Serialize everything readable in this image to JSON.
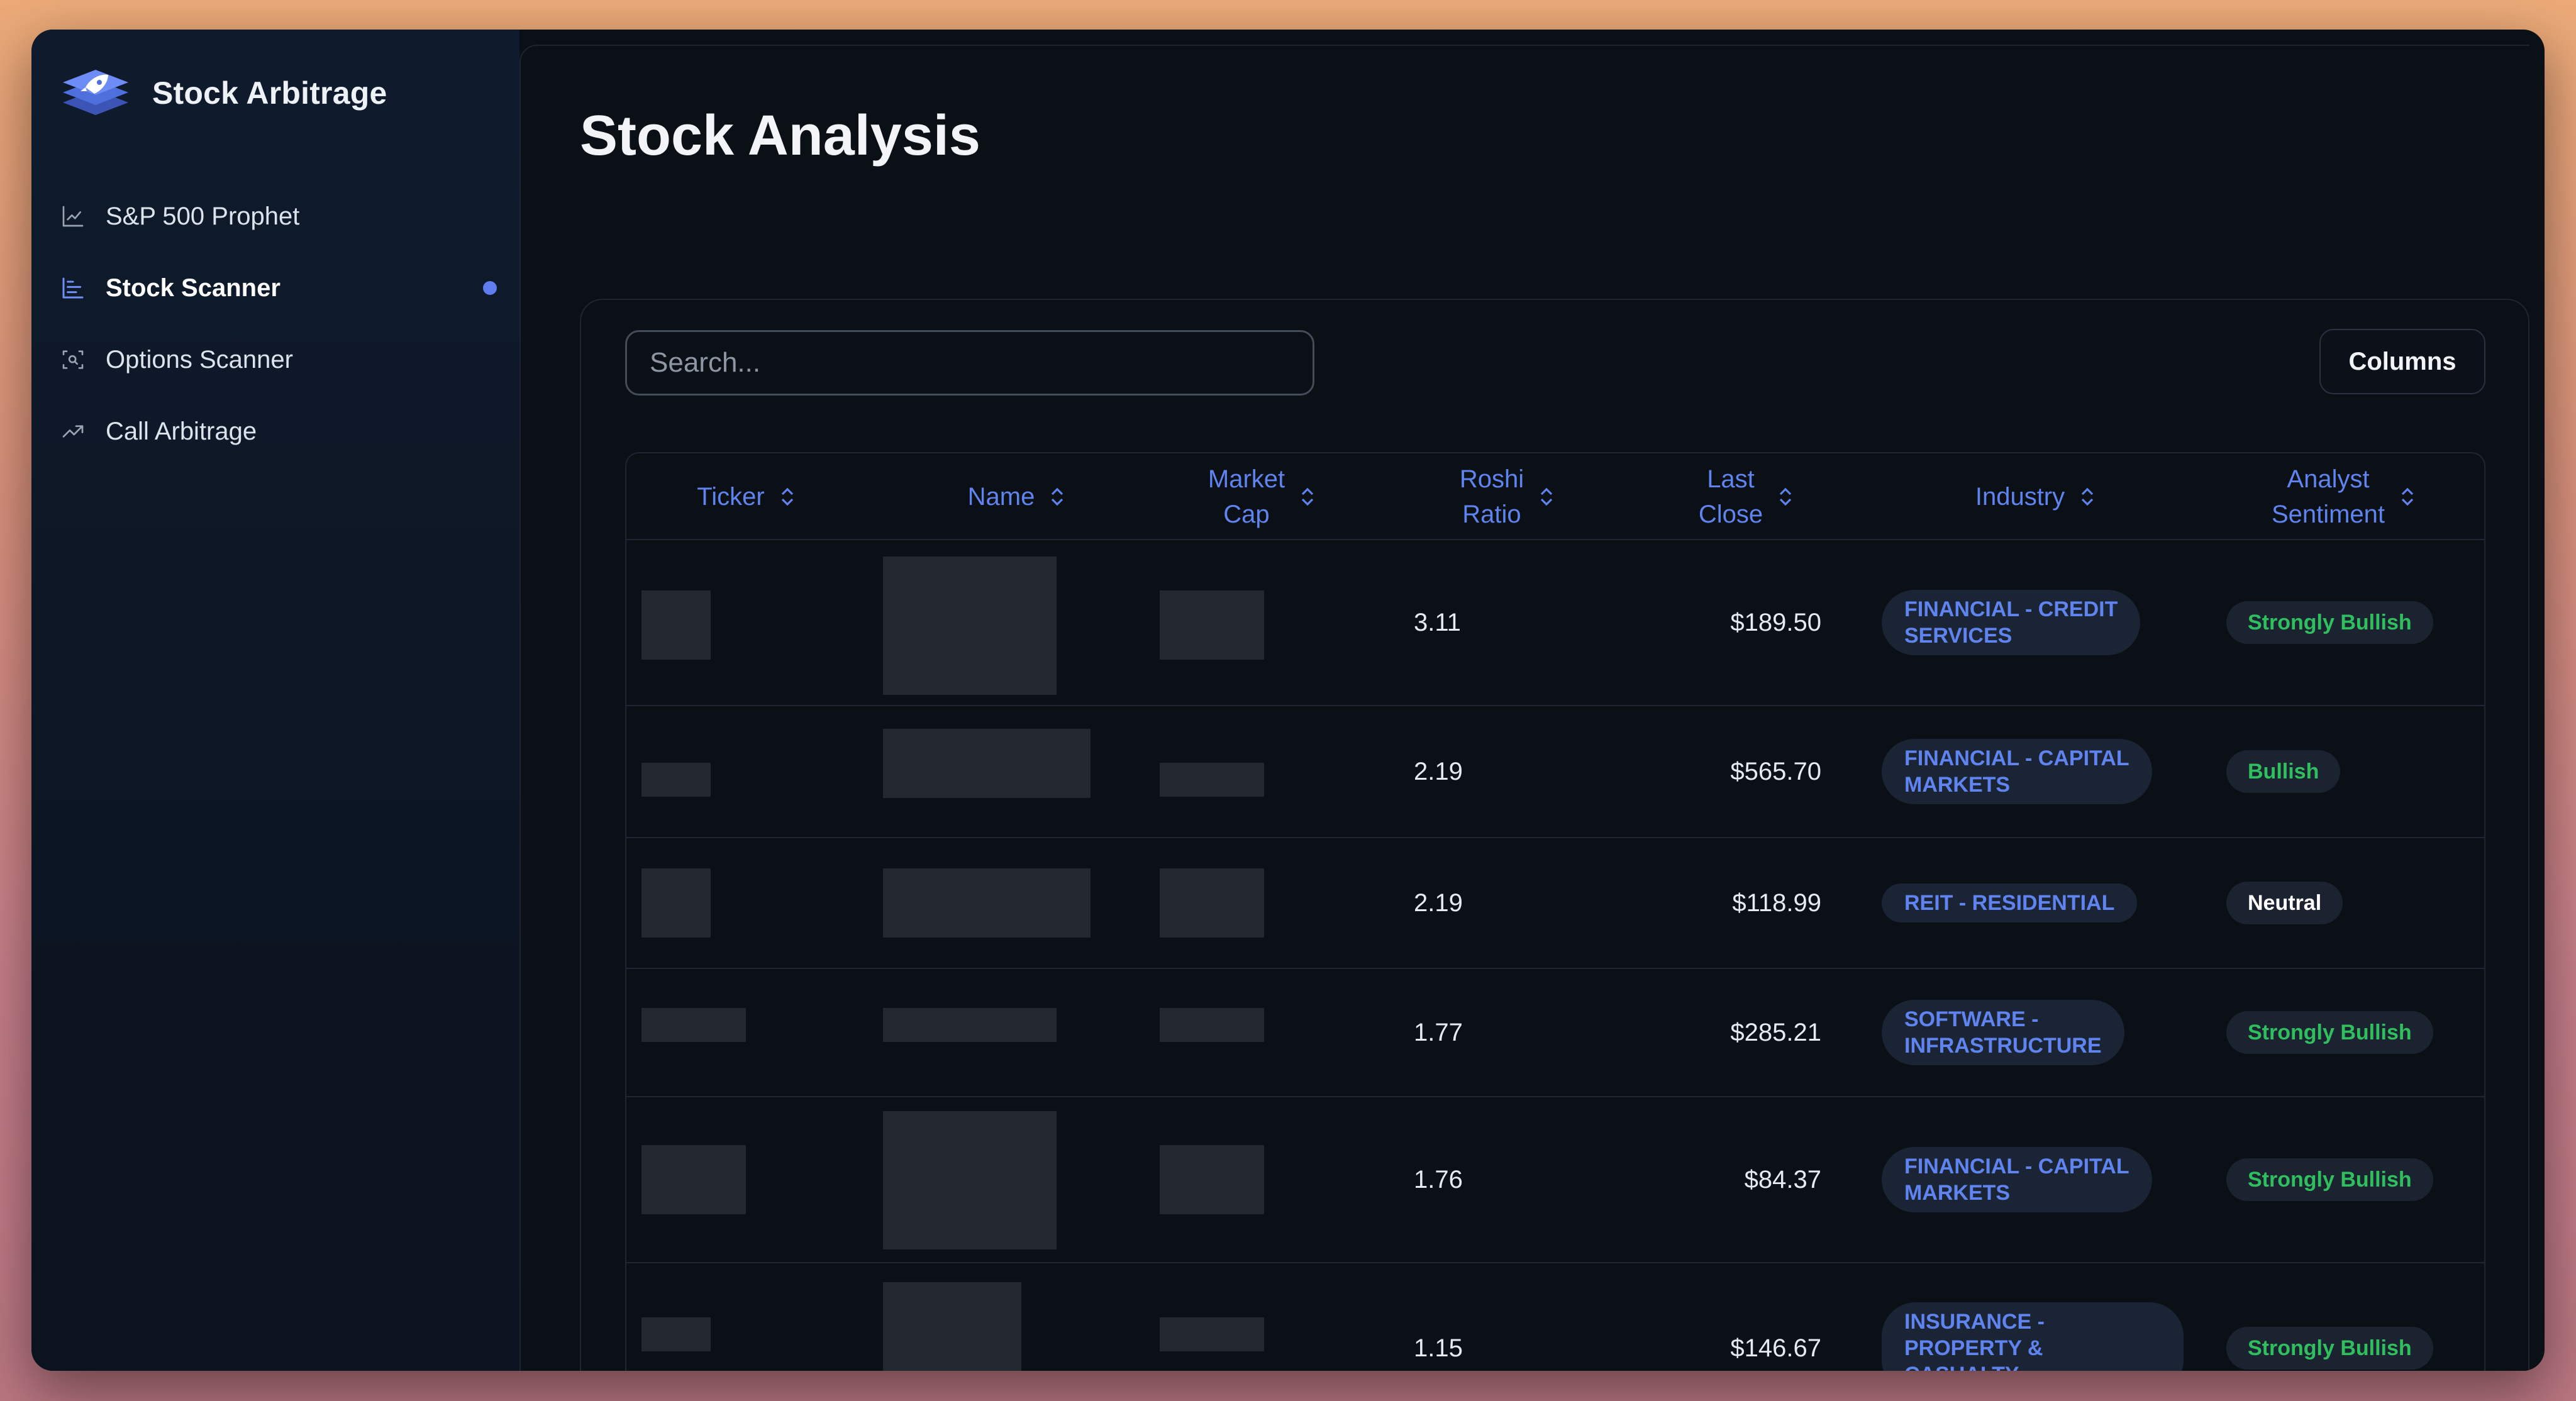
{
  "app": {
    "name": "Stock Arbitrage"
  },
  "sidebar": {
    "items": [
      {
        "label": "S&P 500 Prophet",
        "icon": "line-chart-icon",
        "active": false
      },
      {
        "label": "Stock Scanner",
        "icon": "bar-chart-icon",
        "active": true
      },
      {
        "label": "Options Scanner",
        "icon": "scan-icon",
        "active": false
      },
      {
        "label": "Call Arbitrage",
        "icon": "trending-up-icon",
        "active": false
      }
    ]
  },
  "main": {
    "title": "Stock Analysis",
    "search": {
      "placeholder": "Search..."
    },
    "columns_button": "Columns",
    "table": {
      "headers": {
        "ticker": "Ticker",
        "name": "Name",
        "market_cap_1": "Market",
        "market_cap_2": "Cap",
        "roshi_1": "Roshi",
        "roshi_2": "Ratio",
        "last_close_1": "Last",
        "last_close_2": "Close",
        "industry": "Industry",
        "sentiment_1": "Analyst",
        "sentiment_2": "Sentiment"
      },
      "rows": [
        {
          "ratio": "3.11",
          "close": "$189.50",
          "industry_1": "FINANCIAL - CREDIT",
          "industry_2": "SERVICES",
          "sentiment": "Strongly Bullish"
        },
        {
          "ratio": "2.19",
          "close": "$565.70",
          "industry_1": "FINANCIAL - CAPITAL",
          "industry_2": "MARKETS",
          "sentiment": "Bullish"
        },
        {
          "ratio": "2.19",
          "close": "$118.99",
          "industry_1": "REIT - RESIDENTIAL",
          "industry_2": "",
          "sentiment": "Neutral"
        },
        {
          "ratio": "1.77",
          "close": "$285.21",
          "industry_1": "SOFTWARE -",
          "industry_2": "INFRASTRUCTURE",
          "sentiment": "Strongly Bullish"
        },
        {
          "ratio": "1.76",
          "close": "$84.37",
          "industry_1": "FINANCIAL - CAPITAL",
          "industry_2": "MARKETS",
          "sentiment": "Strongly Bullish"
        },
        {
          "ratio": "1.15",
          "close": "$146.67",
          "industry_1": "INSURANCE -",
          "industry_2": "PROPERTY & CASUALTY",
          "sentiment": "Strongly Bullish"
        }
      ]
    }
  },
  "colors": {
    "accent": "#5f84ef",
    "bullish": "#2fbf5e",
    "background": "#0b0f16",
    "sidebar": "#0f1b2d"
  }
}
